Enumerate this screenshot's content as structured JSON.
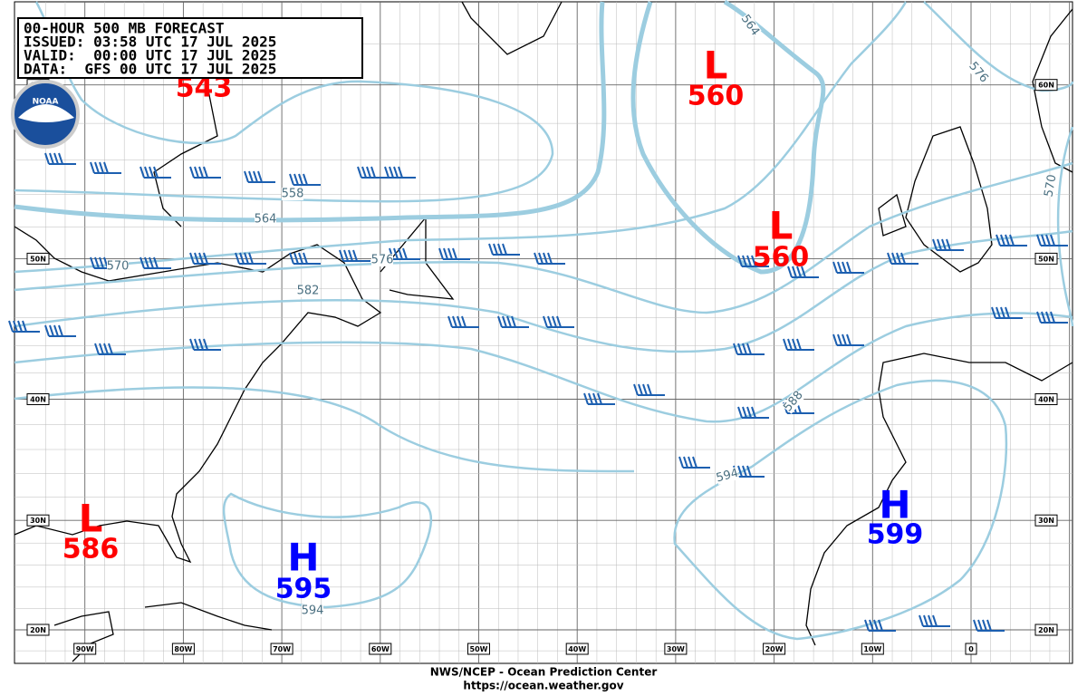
{
  "header": {
    "lines": [
      "00-HOUR 500 MB FORECAST",
      "ISSUED: 03:58 UTC 17 JUL 2025",
      "VALID:  00:00 UTC 17 JUL 2025",
      "DATA:  GFS 00 UTC 17 JUL 2025"
    ]
  },
  "logo": "NOAA",
  "centers": [
    {
      "letter": "L",
      "value": "543",
      "color": "#ff0000"
    },
    {
      "letter": "L",
      "value": "560",
      "color": "#ff0000"
    },
    {
      "letter": "L",
      "value": "560",
      "color": "#ff0000"
    },
    {
      "letter": "L",
      "value": "586",
      "color": "#ff0000"
    },
    {
      "letter": "H",
      "value": "595",
      "color": "#0000ff"
    },
    {
      "letter": "H",
      "value": "599",
      "color": "#0000ff"
    }
  ],
  "contour_labels": [
    "564",
    "576",
    "558",
    "564",
    "570",
    "576",
    "582",
    "588",
    "594",
    "594",
    "570"
  ],
  "lat_labels": [
    "60N",
    "50N",
    "40N",
    "30N",
    "20N"
  ],
  "lon_labels": [
    "90W",
    "80W",
    "70W",
    "60W",
    "50W",
    "40W",
    "30W",
    "20W",
    "10W",
    "0"
  ],
  "footer": [
    "NWS/NCEP - Ocean Prediction Center",
    "https://ocean.weather.gov"
  ]
}
